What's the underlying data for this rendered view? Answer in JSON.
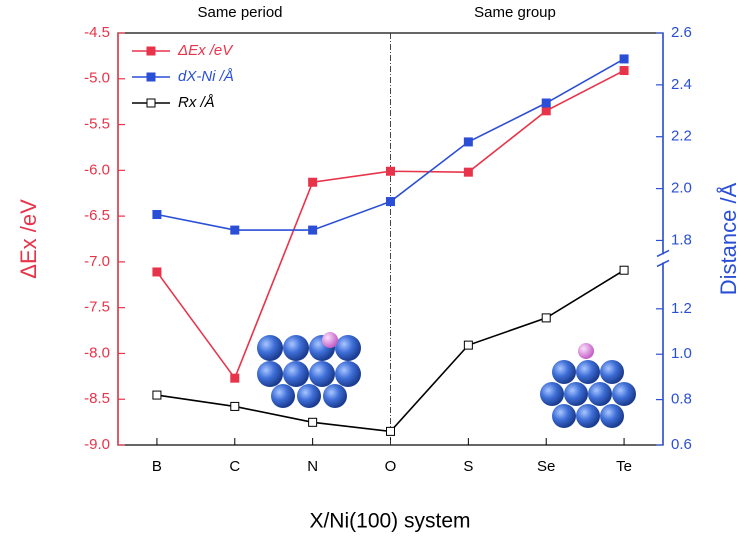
{
  "chart_data": {
    "type": "line",
    "annotations": [
      "Same period",
      "Same group"
    ],
    "xlabel": "X/Ni(100) system",
    "ylabel": "ΔEx /eV",
    "y2label": "Distance /Å",
    "categories": [
      "B",
      "C",
      "N",
      "O",
      "S",
      "Se",
      "Te"
    ],
    "divider_category": 3,
    "ylim": [
      -9,
      -4.5
    ],
    "yticks": [
      {
        "value": -9,
        "label": "-9.0"
      },
      -8.5,
      {
        "value": -8,
        "label": "-8.0"
      },
      -7.5,
      {
        "value": -7,
        "label": "-7.0"
      },
      -6.5,
      {
        "value": -6,
        "label": "-6.0"
      },
      -5.5,
      {
        "value": -5,
        "label": "-5.0"
      },
      -4.5
    ],
    "y2lim": [
      0.6,
      2.6
    ],
    "y2break": [
      1.4,
      1.75
    ],
    "y2ticks": [
      0.6,
      0.8,
      {
        "value": 1,
        "label": "1.0"
      },
      1.2,
      1.8,
      {
        "value": 2,
        "label": "2.0"
      },
      2.2,
      2.4,
      2.6
    ],
    "ycolor": "#e8344a",
    "y2color": "#2a4fd6",
    "legend": "upper left",
    "series": [
      {
        "name": "ΔEx /eV",
        "color": "#e8344a",
        "axis": "y",
        "filled": true,
        "values": [
          -7.11,
          -8.27,
          -6.13,
          -6.01,
          -6.02,
          -5.35,
          -4.91
        ]
      },
      {
        "name": "dX-Ni /Å",
        "color": "#2a4fd6",
        "axis": "y2",
        "filled": true,
        "values": [
          1.9,
          1.84,
          1.84,
          1.95,
          2.18,
          2.33,
          2.5
        ]
      },
      {
        "name": "Rx /Å",
        "color": "#000000",
        "axis": "y2",
        "filled": false,
        "values": [
          0.82,
          0.77,
          0.7,
          0.66,
          1.04,
          1.16,
          1.37
        ]
      }
    ]
  }
}
